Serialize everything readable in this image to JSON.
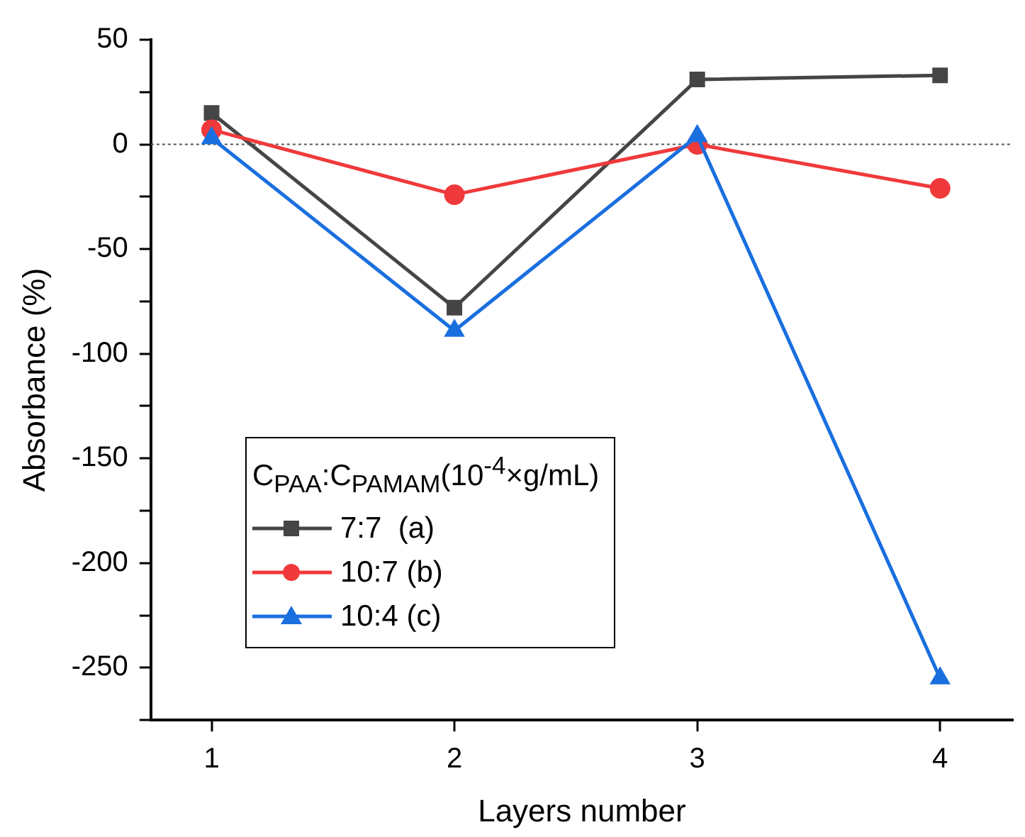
{
  "chart_data": {
    "type": "line",
    "xlabel": "Layers number",
    "ylabel": "Absorbance (%)",
    "legend_title": "C$_{PAA}$:C$_{PAMAM}$(10$^{-4}$×g/mL)",
    "x": [
      1,
      2,
      3,
      4
    ],
    "series": [
      {
        "name": "7:7  (a)",
        "color": "#454545",
        "marker": "square",
        "values": [
          15,
          -78,
          31,
          33
        ]
      },
      {
        "name": "10:7 (b)",
        "color": "#f0393b",
        "marker": "circle",
        "values": [
          7,
          -24,
          0,
          -21
        ]
      },
      {
        "name": "10:4 (c)",
        "color": "#1a6fdf",
        "marker": "triangle",
        "values": [
          3,
          -89,
          4,
          -255
        ]
      }
    ],
    "xlim": [
      0.75,
      4.3
    ],
    "xticks": [
      1,
      2,
      3,
      4
    ],
    "ylim": [
      -275,
      50
    ],
    "yticks": [
      {
        "value": -275,
        "label": null
      },
      -250,
      {
        "value": -225,
        "label": null
      },
      -200,
      {
        "value": -175,
        "label": null
      },
      -150,
      {
        "value": -125,
        "label": null
      },
      -100,
      {
        "value": -75,
        "label": null
      },
      -50,
      {
        "value": -25,
        "label": null
      },
      0,
      {
        "value": 25,
        "label": null
      },
      50
    ],
    "ref_lines": [
      {
        "axis": "y",
        "value": 0,
        "color": "#555555",
        "line_style": "dotted"
      }
    ],
    "grid": false,
    "legend": "left",
    "line_style": "solid"
  }
}
